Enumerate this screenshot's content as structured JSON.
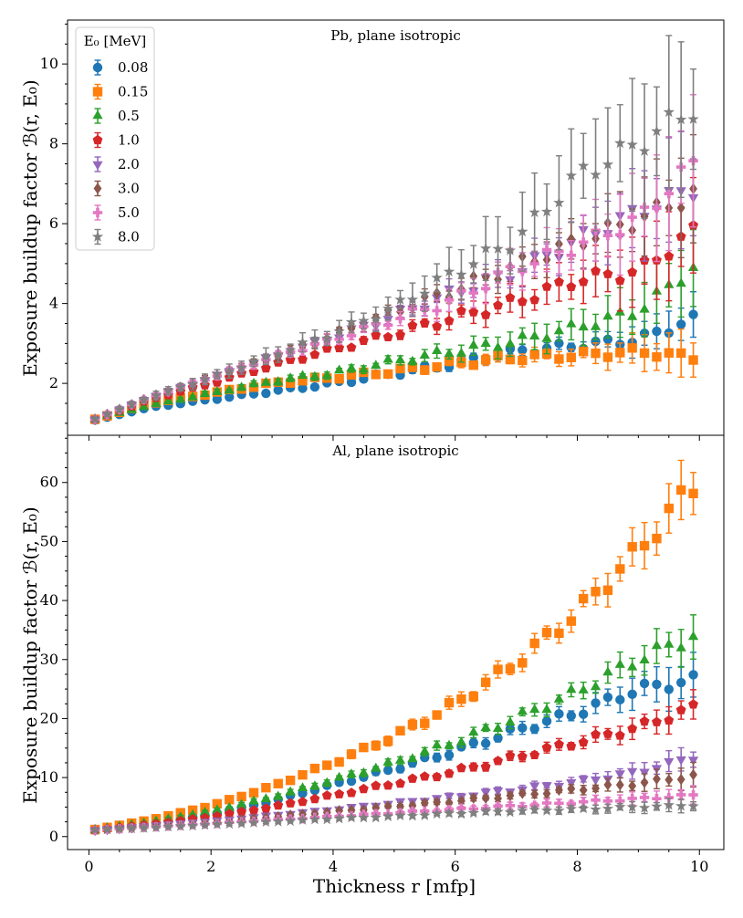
{
  "figure": {
    "xlabel": "Thickness r [mfp]",
    "ylabel": "Exposure buildup factor ℬ(r, E₀)",
    "legend": {
      "title": "E₀ [MeV]",
      "placement": "top-left of top panel",
      "entries": [
        {
          "label": "0.08",
          "color": "#1f77b4",
          "marker": "circle"
        },
        {
          "label": "0.15",
          "color": "#ff7f0e",
          "marker": "square"
        },
        {
          "label": "0.5",
          "color": "#2ca02c",
          "marker": "triangle-up"
        },
        {
          "label": "1.0",
          "color": "#d62728",
          "marker": "pentagon"
        },
        {
          "label": "2.0",
          "color": "#9467bd",
          "marker": "triangle-down"
        },
        {
          "label": "3.0",
          "color": "#8c564b",
          "marker": "diamond"
        },
        {
          "label": "5.0",
          "color": "#e377c2",
          "marker": "plus"
        },
        {
          "label": "8.0",
          "color": "#7f7f7f",
          "marker": "star"
        }
      ]
    }
  },
  "chart_data": [
    {
      "type": "scatter",
      "title": "Pb, plane isotropic",
      "xlabel": "Thickness r [mfp]",
      "ylabel": "Exposure buildup factor ℬ(r, E₀)",
      "xlim": [
        -0.35,
        10.4
      ],
      "ylim": [
        0.7,
        11.1
      ],
      "xticks": [
        0,
        2,
        4,
        6,
        8,
        10
      ],
      "yticks": [
        2,
        4,
        6,
        8,
        10
      ],
      "x_step": 0.2,
      "x_start": 0.1,
      "x_count": 50,
      "series": [
        {
          "name": "0.08",
          "anchors": [
            [
              0.1,
              1.08
            ],
            [
              1,
              1.4
            ],
            [
              2,
              1.6
            ],
            [
              3,
              1.8
            ],
            [
              4,
              2.0
            ],
            [
              5,
              2.25
            ],
            [
              6,
              2.5
            ],
            [
              7,
              2.8
            ],
            [
              8,
              2.95
            ],
            [
              9,
              3.1
            ],
            [
              9.9,
              3.6
            ]
          ],
          "err_anchors": [
            [
              0.1,
              0.04
            ],
            [
              5,
              0.08
            ],
            [
              8,
              0.15
            ],
            [
              9.9,
              0.6
            ]
          ]
        },
        {
          "name": "0.15",
          "anchors": [
            [
              0.1,
              1.1
            ],
            [
              1,
              1.5
            ],
            [
              2,
              1.75
            ],
            [
              3,
              2.0
            ],
            [
              4,
              2.15
            ],
            [
              5,
              2.3
            ],
            [
              6,
              2.5
            ],
            [
              7,
              2.65
            ],
            [
              8,
              2.7
            ],
            [
              9,
              2.8
            ],
            [
              9.9,
              2.65
            ]
          ],
          "err_anchors": [
            [
              0.1,
              0.04
            ],
            [
              5,
              0.08
            ],
            [
              8,
              0.2
            ],
            [
              9.9,
              0.6
            ]
          ]
        },
        {
          "name": "0.5",
          "anchors": [
            [
              0.1,
              1.1
            ],
            [
              1,
              1.45
            ],
            [
              2,
              1.75
            ],
            [
              3,
              2.05
            ],
            [
              4,
              2.25
            ],
            [
              5,
              2.55
            ],
            [
              6,
              2.8
            ],
            [
              7,
              3.05
            ],
            [
              8,
              3.4
            ],
            [
              9,
              3.8
            ],
            [
              9.9,
              4.9
            ]
          ],
          "err_anchors": [
            [
              0.1,
              0.04
            ],
            [
              5,
              0.1
            ],
            [
              8,
              0.4
            ],
            [
              9.9,
              0.9
            ]
          ]
        },
        {
          "name": "1.0",
          "anchors": [
            [
              0.1,
              1.1
            ],
            [
              1,
              1.6
            ],
            [
              2,
              2.0
            ],
            [
              3,
              2.45
            ],
            [
              4,
              2.85
            ],
            [
              5,
              3.25
            ],
            [
              6,
              3.65
            ],
            [
              7,
              4.05
            ],
            [
              8,
              4.6
            ],
            [
              9,
              4.8
            ],
            [
              9.9,
              5.8
            ]
          ],
          "err_anchors": [
            [
              0.1,
              0.04
            ],
            [
              5,
              0.1
            ],
            [
              8,
              0.5
            ],
            [
              9.9,
              1.2
            ]
          ]
        },
        {
          "name": "2.0",
          "anchors": [
            [
              0.1,
              1.1
            ],
            [
              1,
              1.65
            ],
            [
              2,
              2.15
            ],
            [
              3,
              2.65
            ],
            [
              4,
              3.15
            ],
            [
              5,
              3.7
            ],
            [
              6,
              4.3
            ],
            [
              7,
              4.8
            ],
            [
              8,
              5.6
            ],
            [
              9,
              6.3
            ],
            [
              9.9,
              6.9
            ]
          ],
          "err_anchors": [
            [
              0.1,
              0.04
            ],
            [
              5,
              0.12
            ],
            [
              8,
              0.5
            ],
            [
              9.9,
              1.5
            ]
          ]
        },
        {
          "name": "3.0",
          "anchors": [
            [
              0.1,
              1.1
            ],
            [
              1,
              1.65
            ],
            [
              2,
              2.15
            ],
            [
              3,
              2.65
            ],
            [
              4,
              3.2
            ],
            [
              5,
              3.8
            ],
            [
              6,
              4.35
            ],
            [
              7,
              4.95
            ],
            [
              8,
              5.55
            ],
            [
              9,
              6.1
            ],
            [
              9.9,
              6.75
            ]
          ],
          "err_anchors": [
            [
              0.1,
              0.04
            ],
            [
              5,
              0.12
            ],
            [
              8,
              0.5
            ],
            [
              9.9,
              1.3
            ]
          ]
        },
        {
          "name": "5.0",
          "anchors": [
            [
              0.1,
              1.1
            ],
            [
              1,
              1.65
            ],
            [
              2,
              2.15
            ],
            [
              3,
              2.65
            ],
            [
              4,
              3.1
            ],
            [
              5,
              3.6
            ],
            [
              6,
              4.1
            ],
            [
              7,
              4.9
            ],
            [
              8,
              5.45
            ],
            [
              9,
              6.1
            ],
            [
              9.9,
              7.5
            ]
          ],
          "err_anchors": [
            [
              0.1,
              0.04
            ],
            [
              5,
              0.15
            ],
            [
              8,
              0.6
            ],
            [
              9.9,
              1.6
            ]
          ]
        },
        {
          "name": "8.0",
          "anchors": [
            [
              0.1,
              1.1
            ],
            [
              1,
              1.65
            ],
            [
              2,
              2.15
            ],
            [
              3,
              2.7
            ],
            [
              4,
              3.25
            ],
            [
              5,
              3.9
            ],
            [
              6,
              4.8
            ],
            [
              7,
              5.6
            ],
            [
              8,
              7.2
            ],
            [
              9,
              8.0
            ],
            [
              9.9,
              8.9
            ]
          ],
          "err_anchors": [
            [
              0.1,
              0.05
            ],
            [
              5,
              0.3
            ],
            [
              8,
              1.2
            ],
            [
              9.9,
              2.0
            ]
          ]
        }
      ]
    },
    {
      "type": "scatter",
      "title": "Al, plane isotropic",
      "xlabel": "Thickness r [mfp]",
      "ylabel": "Exposure buildup factor ℬ(r, E₀)",
      "xlim": [
        -0.35,
        10.4
      ],
      "ylim": [
        -2.2,
        68
      ],
      "xticks": [
        0,
        2,
        4,
        6,
        8,
        10
      ],
      "yticks": [
        0,
        10,
        20,
        30,
        40,
        50,
        60
      ],
      "x_step": 0.2,
      "x_start": 0.1,
      "x_count": 50,
      "series": [
        {
          "name": "0.08",
          "anchors": [
            [
              0.1,
              1.1
            ],
            [
              1,
              2.2
            ],
            [
              2,
              3.8
            ],
            [
              3,
              6.0
            ],
            [
              4,
              8.8
            ],
            [
              5,
              11.5
            ],
            [
              6,
              14.5
            ],
            [
              7,
              18.0
            ],
            [
              8,
              21.0
            ],
            [
              9,
              25.0
            ],
            [
              9.9,
              26.5
            ]
          ],
          "err_anchors": [
            [
              0.1,
              0.2
            ],
            [
              5,
              0.6
            ],
            [
              8,
              1.2
            ],
            [
              9.9,
              4.0
            ]
          ]
        },
        {
          "name": "0.15",
          "anchors": [
            [
              0.1,
              1.2
            ],
            [
              1,
              2.8
            ],
            [
              2,
              5.2
            ],
            [
              3,
              8.5
            ],
            [
              4,
              12.5
            ],
            [
              5,
              17.0
            ],
            [
              6,
              22.5
            ],
            [
              7,
              29.5
            ],
            [
              8,
              38.0
            ],
            [
              9,
              48.5
            ],
            [
              9.9,
              59.6
            ]
          ],
          "err_anchors": [
            [
              0.1,
              0.2
            ],
            [
              5,
              0.8
            ],
            [
              8,
              1.8
            ],
            [
              9.9,
              5.0
            ]
          ]
        },
        {
          "name": "0.5",
          "anchors": [
            [
              0.1,
              1.15
            ],
            [
              1,
              2.4
            ],
            [
              2,
              4.2
            ],
            [
              3,
              6.6
            ],
            [
              4,
              9.5
            ],
            [
              5,
              12.5
            ],
            [
              6,
              16.0
            ],
            [
              7,
              20.0
            ],
            [
              8,
              24.5
            ],
            [
              9,
              30.0
            ],
            [
              9.9,
              33.9
            ]
          ],
          "err_anchors": [
            [
              0.1,
              0.2
            ],
            [
              5,
              0.6
            ],
            [
              8,
              1.2
            ],
            [
              9.9,
              3.5
            ]
          ]
        },
        {
          "name": "1.0",
          "anchors": [
            [
              0.1,
              1.1
            ],
            [
              1,
              2.0
            ],
            [
              2,
              3.3
            ],
            [
              3,
              5.0
            ],
            [
              4,
              7.0
            ],
            [
              5,
              9.0
            ],
            [
              6,
              11.0
            ],
            [
              7,
              13.5
            ],
            [
              8,
              16.0
            ],
            [
              9,
              18.5
            ],
            [
              9.9,
              21.8
            ]
          ],
          "err_anchors": [
            [
              0.1,
              0.2
            ],
            [
              5,
              0.4
            ],
            [
              8,
              1.0
            ],
            [
              9.9,
              2.5
            ]
          ]
        },
        {
          "name": "2.0",
          "anchors": [
            [
              0.1,
              1.1
            ],
            [
              1,
              1.8
            ],
            [
              2,
              2.6
            ],
            [
              3,
              3.6
            ],
            [
              4,
              4.6
            ],
            [
              5,
              5.7
            ],
            [
              6,
              6.8
            ],
            [
              7,
              8.0
            ],
            [
              8,
              9.3
            ],
            [
              9,
              11.0
            ],
            [
              9.9,
              13.5
            ]
          ],
          "err_anchors": [
            [
              0.1,
              0.15
            ],
            [
              5,
              0.3
            ],
            [
              8,
              0.8
            ],
            [
              9.9,
              2.0
            ]
          ]
        },
        {
          "name": "3.0",
          "anchors": [
            [
              0.1,
              1.1
            ],
            [
              1,
              1.7
            ],
            [
              2,
              2.4
            ],
            [
              3,
              3.3
            ],
            [
              4,
              4.2
            ],
            [
              5,
              5.1
            ],
            [
              6,
              6.0
            ],
            [
              7,
              7.0
            ],
            [
              8,
              8.0
            ],
            [
              9,
              9.0
            ],
            [
              9.9,
              10.3
            ]
          ],
          "err_anchors": [
            [
              0.1,
              0.15
            ],
            [
              5,
              0.3
            ],
            [
              8,
              0.7
            ],
            [
              9.9,
              2.0
            ]
          ]
        },
        {
          "name": "5.0",
          "anchors": [
            [
              0.1,
              1.1
            ],
            [
              1,
              1.6
            ],
            [
              2,
              2.2
            ],
            [
              3,
              2.8
            ],
            [
              4,
              3.4
            ],
            [
              5,
              4.0
            ],
            [
              6,
              4.6
            ],
            [
              7,
              5.2
            ],
            [
              8,
              5.8
            ],
            [
              9,
              6.4
            ],
            [
              9.9,
              7.0
            ]
          ],
          "err_anchors": [
            [
              0.1,
              0.15
            ],
            [
              5,
              0.3
            ],
            [
              8,
              0.7
            ],
            [
              9.9,
              1.5
            ]
          ]
        },
        {
          "name": "8.0",
          "anchors": [
            [
              0.1,
              1.1
            ],
            [
              1,
              1.5
            ],
            [
              2,
              2.0
            ],
            [
              3,
              2.5
            ],
            [
              4,
              3.0
            ],
            [
              5,
              3.4
            ],
            [
              6,
              3.9
            ],
            [
              7,
              4.3
            ],
            [
              8,
              4.6
            ],
            [
              9,
              5.0
            ],
            [
              9.9,
              5.3
            ]
          ],
          "err_anchors": [
            [
              0.1,
              0.15
            ],
            [
              5,
              0.3
            ],
            [
              8,
              0.6
            ],
            [
              9.9,
              1.2
            ]
          ]
        }
      ]
    }
  ]
}
